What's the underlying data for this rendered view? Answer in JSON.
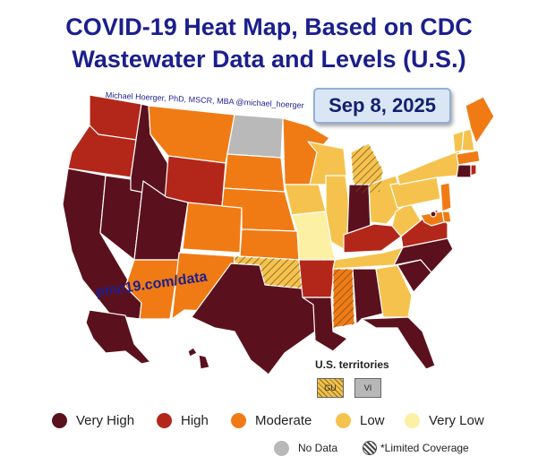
{
  "title": {
    "line1": "COVID-19 Heat Map, Based on CDC",
    "line2": "Wastewater Data and Levels (U.S.)"
  },
  "credit": "Michael Hoerger, PhD, MSCR, MBA  @michael_hoerger",
  "date": "Sep 8, 2025",
  "website": "pmc19.com/data",
  "colors": {
    "very_high": "#5b111d",
    "high": "#b3271a",
    "moderate": "#f07b15",
    "low": "#f5c34d",
    "very_low": "#fbf0a4",
    "no_data": "#b9b9b9"
  },
  "territories": {
    "title": "U.S. territories",
    "items": [
      {
        "code": "GU",
        "level": "low",
        "limited_coverage": true
      },
      {
        "code": "VI",
        "level": "no_data",
        "limited_coverage": false
      }
    ]
  },
  "legend": {
    "items": [
      {
        "key": "very_high",
        "label": "Very High"
      },
      {
        "key": "high",
        "label": "High"
      },
      {
        "key": "moderate",
        "label": "Moderate"
      },
      {
        "key": "low",
        "label": "Low"
      },
      {
        "key": "very_low",
        "label": "Very Low"
      }
    ],
    "no_data_label": "No Data",
    "limited_label": "*Limited Coverage"
  },
  "states": [
    {
      "name": "WA",
      "level": "high"
    },
    {
      "name": "OR",
      "level": "high"
    },
    {
      "name": "CA",
      "level": "very_high"
    },
    {
      "name": "NV",
      "level": "very_high"
    },
    {
      "name": "ID",
      "level": "very_high"
    },
    {
      "name": "MT",
      "level": "moderate"
    },
    {
      "name": "WY",
      "level": "high"
    },
    {
      "name": "UT",
      "level": "very_high"
    },
    {
      "name": "AZ",
      "level": "moderate"
    },
    {
      "name": "CO",
      "level": "moderate"
    },
    {
      "name": "NM",
      "level": "moderate"
    },
    {
      "name": "ND",
      "level": "no_data"
    },
    {
      "name": "SD",
      "level": "moderate"
    },
    {
      "name": "NE",
      "level": "moderate"
    },
    {
      "name": "KS",
      "level": "moderate"
    },
    {
      "name": "OK",
      "level": "low",
      "limited": true
    },
    {
      "name": "TX",
      "level": "very_high"
    },
    {
      "name": "MN",
      "level": "moderate"
    },
    {
      "name": "IA",
      "level": "low"
    },
    {
      "name": "MO",
      "level": "very_low"
    },
    {
      "name": "AR",
      "level": "high"
    },
    {
      "name": "LA",
      "level": "very_high"
    },
    {
      "name": "WI",
      "level": "low"
    },
    {
      "name": "IL",
      "level": "low"
    },
    {
      "name": "MI",
      "level": "low",
      "limited": true
    },
    {
      "name": "IN",
      "level": "very_high"
    },
    {
      "name": "OH",
      "level": "low"
    },
    {
      "name": "KY",
      "level": "high"
    },
    {
      "name": "TN",
      "level": "low"
    },
    {
      "name": "MS",
      "level": "moderate",
      "limited": true
    },
    {
      "name": "AL",
      "level": "very_high"
    },
    {
      "name": "GA",
      "level": "low"
    },
    {
      "name": "FL",
      "level": "very_high"
    },
    {
      "name": "SC",
      "level": "very_high"
    },
    {
      "name": "NC",
      "level": "very_high"
    },
    {
      "name": "VA",
      "level": "high"
    },
    {
      "name": "WV",
      "level": "low"
    },
    {
      "name": "PA",
      "level": "low"
    },
    {
      "name": "NY",
      "level": "low"
    },
    {
      "name": "VT",
      "level": "low"
    },
    {
      "name": "NH",
      "level": "low"
    },
    {
      "name": "ME",
      "level": "moderate"
    },
    {
      "name": "MA",
      "level": "moderate"
    },
    {
      "name": "CT",
      "level": "very_high"
    },
    {
      "name": "RI",
      "level": "high"
    },
    {
      "name": "NJ",
      "level": "moderate"
    },
    {
      "name": "DE",
      "level": "moderate"
    },
    {
      "name": "MD",
      "level": "moderate"
    },
    {
      "name": "DC",
      "level": "very_high"
    },
    {
      "name": "AK",
      "level": "very_high"
    },
    {
      "name": "HI",
      "level": "very_high"
    }
  ]
}
